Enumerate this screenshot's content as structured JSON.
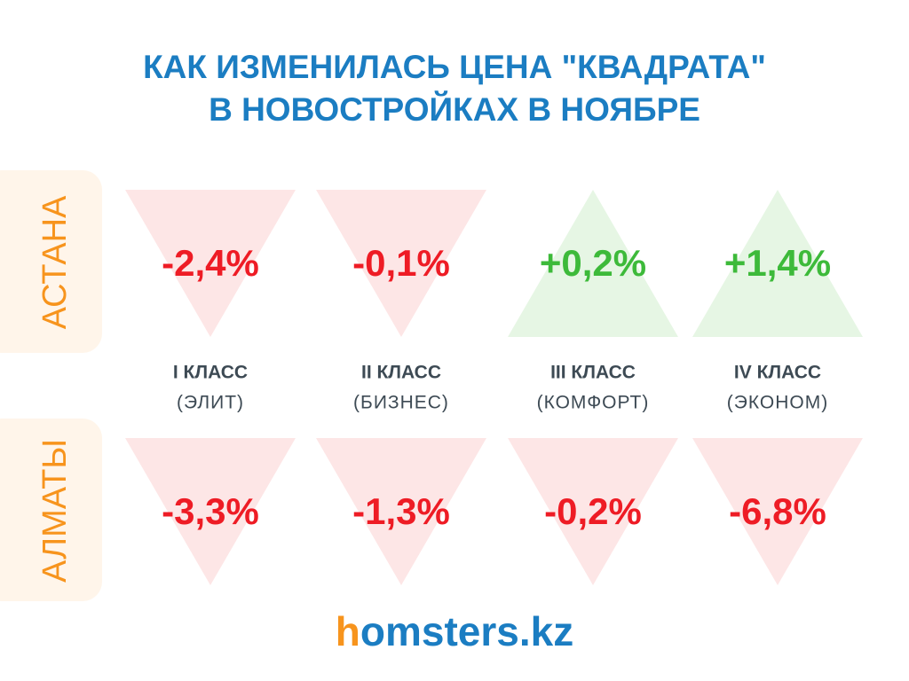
{
  "title": [
    "КАК ИЗМЕНИЛАСЬ ЦЕНА \"КВАДРАТА\"",
    "В НОВОСТРОЙКАХ В НОЯБРЕ"
  ],
  "rows": [
    {
      "label": "АСТАНА",
      "values": [
        "-2,4%",
        "-0,1%",
        "+0,2%",
        "+1,4%"
      ]
    },
    {
      "label": "АЛМАТЫ",
      "values": [
        "-3,3%",
        "-1,3%",
        "-0,2%",
        "-6,8%"
      ]
    }
  ],
  "classes": [
    {
      "name": "I КЛАСС",
      "note": "(ЭЛИТ)"
    },
    {
      "name": "II КЛАСС",
      "note": "(БИЗНЕС)"
    },
    {
      "name": "III КЛАСС",
      "note": "(КОМФОРТ)"
    },
    {
      "name": "IV КЛАСС",
      "note": "(ЭКОНОМ)"
    }
  ],
  "logo": {
    "mark": "h",
    "text": "omsters.kz"
  }
}
